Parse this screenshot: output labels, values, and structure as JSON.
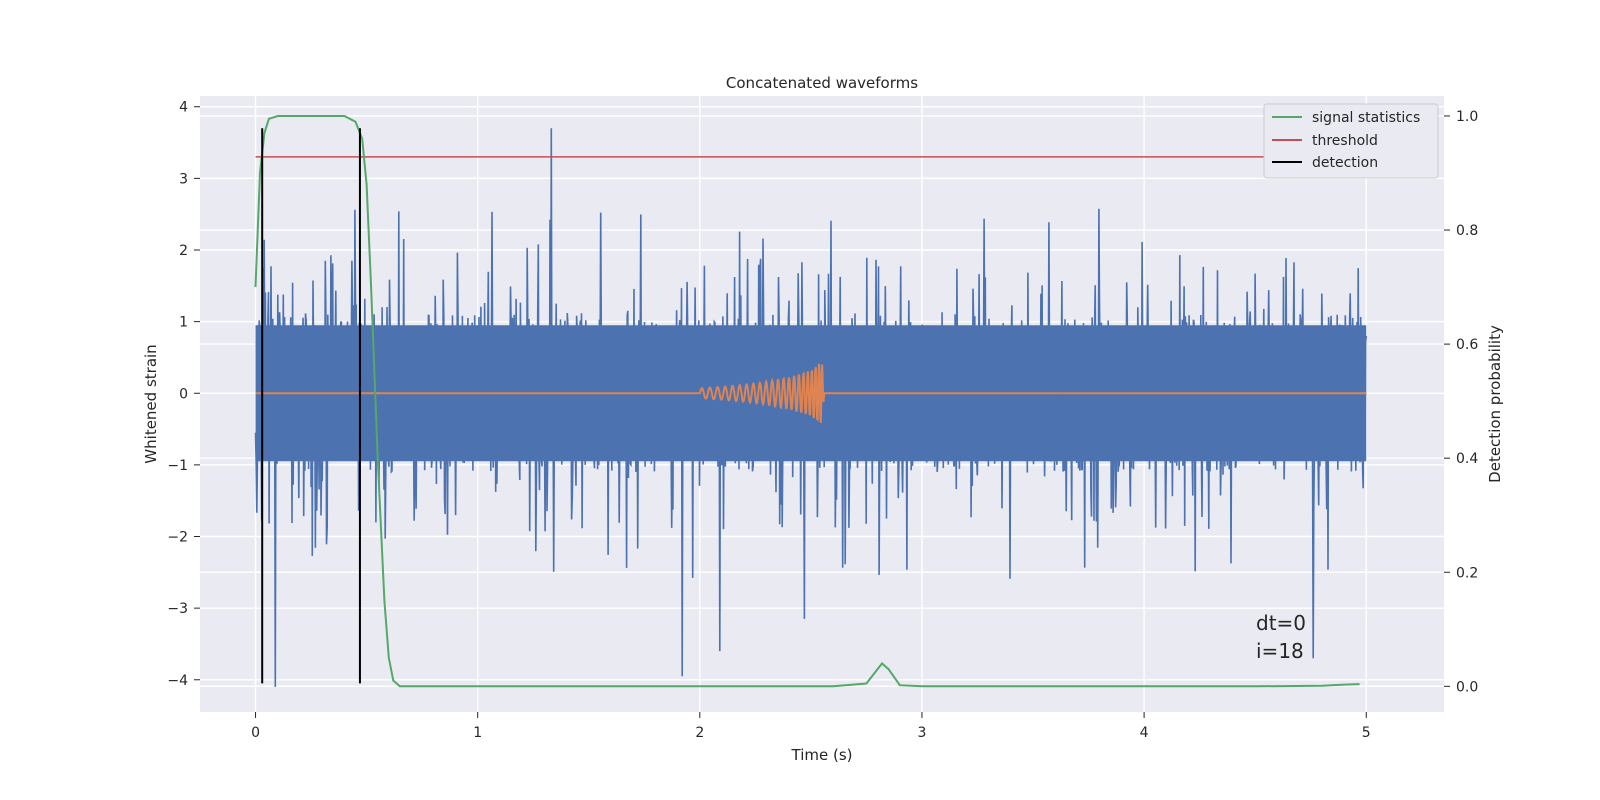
{
  "chart_data": {
    "type": "line",
    "title": "Concatenated waveforms",
    "xlabel": "Time (s)",
    "ylabel": "Whitened strain",
    "ylabel_right": "Detection probability",
    "xlim": [
      -0.25,
      5.35
    ],
    "ylim": [
      -4.45,
      4.15
    ],
    "ylim_right": [
      -0.045,
      1.035
    ],
    "xticks": [
      0,
      1,
      2,
      3,
      4,
      5
    ],
    "xtick_labels": [
      "0",
      "1",
      "2",
      "3",
      "4",
      "5"
    ],
    "yticks": [
      -4,
      -3,
      -2,
      -1,
      0,
      1,
      2,
      3,
      4
    ],
    "ytick_labels": [
      "−4",
      "−3",
      "−2",
      "−1",
      "0",
      "1",
      "2",
      "3",
      "4"
    ],
    "yticks_right": [
      0.0,
      0.2,
      0.4,
      0.6,
      0.8,
      1.0
    ],
    "ytick_right_labels": [
      "0.0",
      "0.2",
      "0.4",
      "0.6",
      "0.8",
      "1.0"
    ],
    "grid": true,
    "legend_position": "top-right",
    "series": [
      {
        "name": "",
        "axis": "left",
        "color": "#4c72b0",
        "kind": "noise",
        "x_range": [
          0,
          5
        ],
        "core_amplitude": 0.95,
        "peak_x": [
          0.09,
          1.33,
          1.92,
          2.09,
          2.47,
          4.76
        ],
        "peak_y": [
          -4.1,
          3.7,
          -3.95,
          -3.6,
          -3.15,
          -3.7
        ]
      },
      {
        "name": "",
        "axis": "left",
        "color": "#dd8452",
        "kind": "chirp",
        "x": [
          0,
          2.0,
          2.1,
          2.2,
          2.3,
          2.4,
          2.5,
          2.55,
          2.56,
          5.0
        ],
        "amplitude": [
          0,
          0.07,
          0.09,
          0.12,
          0.16,
          0.22,
          0.32,
          0.45,
          0,
          0
        ]
      },
      {
        "name": "signal statistics",
        "axis": "right",
        "color": "#55a868",
        "x": [
          0,
          0.02,
          0.04,
          0.06,
          0.1,
          0.15,
          0.4,
          0.45,
          0.48,
          0.5,
          0.52,
          0.55,
          0.58,
          0.6,
          0.62,
          0.65,
          0.7,
          2.6,
          2.75,
          2.8,
          2.82,
          2.85,
          2.9,
          3.0,
          4.5,
          4.8,
          4.9,
          4.97
        ],
        "y": [
          0.7,
          0.9,
          0.97,
          0.995,
          1.0,
          1.0,
          1.0,
          0.99,
          0.96,
          0.88,
          0.7,
          0.4,
          0.15,
          0.05,
          0.01,
          0.0,
          0.0,
          0.0,
          0.005,
          0.03,
          0.04,
          0.03,
          0.002,
          0.0,
          0.0,
          0.001,
          0.003,
          0.004
        ]
      },
      {
        "name": "threshold",
        "axis": "left",
        "color": "#c44e52",
        "x": [
          0,
          5
        ],
        "y": [
          3.3,
          3.3
        ]
      },
      {
        "name": "detection",
        "axis": "left",
        "color": "#000000",
        "kind": "vlines",
        "x": [
          0.03,
          0.47
        ],
        "y_range": [
          -4.05,
          3.7
        ]
      }
    ],
    "annotations": [
      "dt=0",
      "i=18"
    ]
  }
}
